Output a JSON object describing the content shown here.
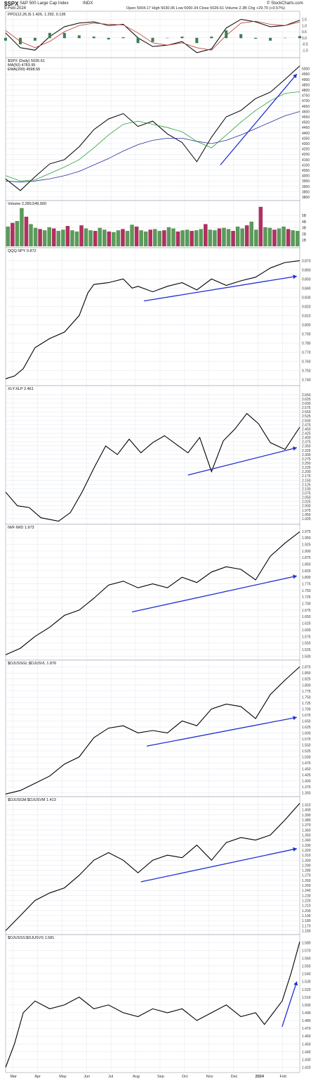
{
  "header": {
    "symbol": "$SPX",
    "name": "S&P 500 Large Cap Index",
    "exchange": "INDX",
    "date": "9-Feb-2024",
    "watermark": "© StockCharts.com",
    "quote": "Open 5004.17  High 5030.06  Low 5000.34  Close 5026.61  Volume 2.3B  Chg +29.70 (+0.57%)"
  },
  "x_axis": {
    "months": [
      "Mar",
      "Apr",
      "May",
      "Jun",
      "Jul",
      "Aug",
      "Sep",
      "Oct",
      "Nov",
      "Dec",
      "2024",
      "Feb"
    ]
  },
  "colors": {
    "price_line": "#000000",
    "ppo_signal": "#c0392b",
    "histogram": "#3a7d55",
    "ma50": "#2e9e3a",
    "ema200": "#2b2b9a",
    "volume_up": "#5a9a5a",
    "volume_down": "#b03060",
    "trend_arrow": "#1f2fd0",
    "grid": "#e2e6ee"
  },
  "chart_data": [
    {
      "id": "ppo",
      "type": "line",
      "title": "PPO(12,26,9) 1.426, 1.292, 0.136",
      "ylim": [
        -1.5,
        1.7
      ],
      "yticks": [
        "1.5",
        "1.0",
        "0.5",
        "0.0",
        "-0.5",
        "-1.0"
      ],
      "tick_values": [
        1.5,
        1.0,
        0.5,
        0.0,
        -0.5,
        -1.0
      ],
      "x": [
        0,
        0.05,
        0.1,
        0.15,
        0.2,
        0.25,
        0.3,
        0.35,
        0.4,
        0.45,
        0.5,
        0.55,
        0.6,
        0.65,
        0.7,
        0.75,
        0.8,
        0.85,
        0.9,
        0.95,
        1
      ],
      "series": [
        {
          "role": "ppo",
          "values": [
            0.4,
            -0.8,
            -1.0,
            0.1,
            0.9,
            1.2,
            1.3,
            1.0,
            1.1,
            0.0,
            -0.7,
            -0.6,
            -0.3,
            -1.2,
            -0.9,
            0.8,
            1.5,
            1.3,
            0.9,
            1.0,
            1.43
          ]
        },
        {
          "role": "signal",
          "values": [
            0.6,
            -0.3,
            -0.8,
            -0.3,
            0.5,
            1.0,
            1.2,
            1.1,
            1.05,
            0.4,
            -0.4,
            -0.6,
            -0.4,
            -0.8,
            -1.0,
            0.2,
            1.2,
            1.35,
            1.1,
            1.0,
            1.29
          ]
        }
      ]
    },
    {
      "id": "spx",
      "type": "line",
      "legend": [
        "$SPX (Daily) 5026.61",
        "MA(50) 4783.95",
        "EMA(200) 4598.56"
      ],
      "ylim": [
        3780,
        5050
      ],
      "yticks": [
        "5000",
        "4950",
        "4900",
        "4850",
        "4800",
        "4750",
        "4700",
        "4650",
        "4600",
        "4550",
        "4500",
        "4450",
        "4400",
        "4350",
        "4300",
        "4250",
        "4200",
        "4150",
        "4100",
        "4050",
        "4000",
        "3950",
        "3900",
        "3850",
        "3800"
      ],
      "tick_values": [
        5000,
        4950,
        4900,
        4850,
        4800,
        4750,
        4700,
        4650,
        4600,
        4550,
        4500,
        4450,
        4400,
        4350,
        4300,
        4250,
        4200,
        4150,
        4100,
        4050,
        4000,
        3950,
        3900,
        3850,
        3800
      ],
      "x": [
        0,
        0.05,
        0.1,
        0.15,
        0.2,
        0.25,
        0.3,
        0.35,
        0.4,
        0.45,
        0.5,
        0.55,
        0.6,
        0.65,
        0.7,
        0.75,
        0.8,
        0.85,
        0.9,
        0.95,
        1
      ],
      "series": [
        {
          "role": "price",
          "values": [
            3970,
            3860,
            3990,
            4110,
            4150,
            4270,
            4430,
            4530,
            4580,
            4460,
            4510,
            4390,
            4310,
            4130,
            4360,
            4550,
            4610,
            4720,
            4780,
            4900,
            5026
          ]
        },
        {
          "role": "ma50",
          "values": [
            4000,
            3950,
            3960,
            4020,
            4080,
            4150,
            4260,
            4380,
            4480,
            4510,
            4480,
            4450,
            4410,
            4320,
            4260,
            4380,
            4500,
            4610,
            4700,
            4770,
            4784
          ]
        },
        {
          "role": "ema200",
          "values": [
            3950,
            3940,
            3950,
            3970,
            4000,
            4040,
            4100,
            4160,
            4230,
            4290,
            4330,
            4350,
            4350,
            4320,
            4300,
            4330,
            4380,
            4440,
            4500,
            4560,
            4599
          ]
        }
      ],
      "arrow": {
        "x": [
          0.73,
          0.99
        ],
        "y": [
          4100,
          4950
        ]
      }
    },
    {
      "id": "volume",
      "type": "bar",
      "title": "Volume 2,289,549,900",
      "ylim": [
        0,
        6.5
      ],
      "yticks": [
        "5B",
        "4B",
        "3B",
        "2B",
        "1B"
      ],
      "tick_values": [
        5,
        4,
        3,
        2,
        1
      ],
      "values": [
        3.2,
        3.8,
        4.1,
        6.2,
        4.8,
        3.6,
        3.0,
        2.8,
        2.6,
        3.1,
        2.9,
        2.5,
        2.7,
        3.3,
        2.6,
        2.4,
        3.4,
        2.9,
        2.6,
        2.5,
        3.0,
        2.7,
        2.4,
        2.3,
        2.6,
        2.8,
        2.5,
        3.5,
        3.2,
        2.6,
        2.4,
        2.7,
        2.8,
        2.5,
        2.6,
        3.1,
        2.9,
        2.4,
        2.6,
        2.7,
        2.5,
        2.6,
        2.8,
        3.6,
        2.7,
        2.6,
        2.9,
        3.0,
        2.8,
        2.5,
        3.2,
        2.9,
        3.4,
        4.0,
        2.7,
        6.4,
        3.1,
        3.0,
        2.7,
        2.9,
        3.2,
        2.8,
        2.6,
        2.5
      ]
    },
    {
      "id": "qqq-spy",
      "type": "line",
      "title": "QQQ:SPY 0.872",
      "ylim": [
        0.735,
        0.878
      ],
      "yticks": [
        "0.870",
        "0.860",
        "0.850",
        "0.840",
        "0.830",
        "0.820",
        "0.810",
        "0.800",
        "0.790",
        "0.780",
        "0.770",
        "0.760",
        "0.750",
        "0.740"
      ],
      "tick_values": [
        0.87,
        0.86,
        0.85,
        0.84,
        0.83,
        0.82,
        0.81,
        0.8,
        0.79,
        0.78,
        0.77,
        0.76,
        0.75,
        0.74
      ],
      "x": [
        0,
        0.03,
        0.06,
        0.1,
        0.15,
        0.2,
        0.25,
        0.28,
        0.3,
        0.35,
        0.4,
        0.43,
        0.45,
        0.5,
        0.55,
        0.6,
        0.65,
        0.7,
        0.75,
        0.8,
        0.85,
        0.9,
        0.95,
        1
      ],
      "values": [
        0.741,
        0.744,
        0.752,
        0.775,
        0.785,
        0.792,
        0.81,
        0.835,
        0.844,
        0.846,
        0.85,
        0.84,
        0.842,
        0.836,
        0.842,
        0.846,
        0.838,
        0.85,
        0.843,
        0.848,
        0.852,
        0.862,
        0.868,
        0.87
      ],
      "arrow": {
        "x": [
          0.47,
          0.99
        ],
        "y": [
          0.826,
          0.853
        ]
      }
    },
    {
      "id": "xly-xlp",
      "type": "line",
      "title": "XLY:XLP 2.461",
      "ylim": [
        1.9,
        2.67
      ],
      "yticks": [
        "2.650",
        "2.625",
        "2.600",
        "2.575",
        "2.550",
        "2.525",
        "2.500",
        "2.475",
        "2.450",
        "2.425",
        "2.400",
        "2.375",
        "2.350",
        "2.325",
        "2.300",
        "2.275",
        "2.250",
        "2.225",
        "2.200",
        "2.175",
        "2.150",
        "2.125",
        "2.100",
        "2.075",
        "2.050",
        "2.025",
        "2.000",
        "1.975",
        "1.950",
        "1.925"
      ],
      "tick_values": [
        2.65,
        2.625,
        2.6,
        2.575,
        2.55,
        2.525,
        2.5,
        2.475,
        2.45,
        2.425,
        2.4,
        2.375,
        2.35,
        2.325,
        2.3,
        2.275,
        2.25,
        2.225,
        2.2,
        2.175,
        2.15,
        2.125,
        2.1,
        2.075,
        2.05,
        2.025,
        2.0,
        1.975,
        1.95,
        1.925
      ],
      "x": [
        0,
        0.04,
        0.08,
        0.12,
        0.18,
        0.22,
        0.26,
        0.3,
        0.34,
        0.38,
        0.42,
        0.46,
        0.5,
        0.54,
        0.58,
        0.62,
        0.66,
        0.7,
        0.74,
        0.78,
        0.82,
        0.86,
        0.9,
        0.95,
        1
      ],
      "values": [
        2.08,
        2.0,
        1.99,
        1.93,
        1.91,
        1.96,
        2.08,
        2.22,
        2.35,
        2.3,
        2.39,
        2.31,
        2.37,
        2.41,
        2.36,
        2.31,
        2.4,
        2.2,
        2.38,
        2.45,
        2.54,
        2.48,
        2.37,
        2.33,
        2.46
      ],
      "arrow": {
        "x": [
          0.62,
          0.99
        ],
        "y": [
          2.18,
          2.34
        ]
      }
    },
    {
      "id": "iwf-iwd",
      "type": "line",
      "title": "IWF:IWD 1.973",
      "ylim": [
        1.49,
        1.98
      ],
      "yticks": [
        "1.975",
        "1.950",
        "1.925",
        "1.900",
        "1.875",
        "1.850",
        "1.825",
        "1.800",
        "1.775",
        "1.750",
        "1.725",
        "1.700",
        "1.675",
        "1.650",
        "1.625",
        "1.600",
        "1.575",
        "1.550",
        "1.525",
        "1.500"
      ],
      "tick_values": [
        1.975,
        1.95,
        1.925,
        1.9,
        1.875,
        1.85,
        1.825,
        1.8,
        1.775,
        1.75,
        1.725,
        1.7,
        1.675,
        1.65,
        1.625,
        1.6,
        1.575,
        1.55,
        1.525,
        1.5
      ],
      "x": [
        0,
        0.05,
        0.1,
        0.15,
        0.2,
        0.25,
        0.3,
        0.35,
        0.4,
        0.45,
        0.5,
        0.55,
        0.6,
        0.65,
        0.7,
        0.75,
        0.8,
        0.85,
        0.9,
        0.95,
        1
      ],
      "values": [
        1.505,
        1.53,
        1.575,
        1.61,
        1.655,
        1.675,
        1.72,
        1.77,
        1.785,
        1.76,
        1.775,
        1.76,
        1.8,
        1.78,
        1.82,
        1.84,
        1.83,
        1.79,
        1.88,
        1.93,
        1.973
      ],
      "arrow": {
        "x": [
          0.43,
          0.99
        ],
        "y": [
          1.668,
          1.805
        ]
      }
    },
    {
      "id": "djussg-djussvl",
      "type": "line",
      "title": "$DJUSSGL:$DJUSVL 1.876",
      "ylim": [
        1.34,
        1.88
      ],
      "yticks": [
        "1.875",
        "1.850",
        "1.825",
        "1.800",
        "1.775",
        "1.750",
        "1.725",
        "1.700",
        "1.675",
        "1.650",
        "1.625",
        "1.600",
        "1.575",
        "1.550",
        "1.525",
        "1.500",
        "1.475",
        "1.450",
        "1.425",
        "1.400",
        "1.375",
        "1.350"
      ],
      "tick_values": [
        1.875,
        1.85,
        1.825,
        1.8,
        1.775,
        1.75,
        1.725,
        1.7,
        1.675,
        1.65,
        1.625,
        1.6,
        1.575,
        1.55,
        1.525,
        1.5,
        1.475,
        1.45,
        1.425,
        1.4,
        1.375,
        1.35
      ],
      "x": [
        0,
        0.05,
        0.1,
        0.15,
        0.2,
        0.25,
        0.3,
        0.35,
        0.4,
        0.45,
        0.5,
        0.55,
        0.6,
        0.65,
        0.7,
        0.75,
        0.8,
        0.85,
        0.9,
        0.95,
        1
      ],
      "values": [
        1.345,
        1.36,
        1.39,
        1.42,
        1.47,
        1.5,
        1.58,
        1.62,
        1.63,
        1.6,
        1.61,
        1.6,
        1.65,
        1.63,
        1.7,
        1.72,
        1.71,
        1.66,
        1.76,
        1.82,
        1.876
      ],
      "arrow": {
        "x": [
          0.48,
          0.99
        ],
        "y": [
          1.545,
          1.665
        ]
      }
    },
    {
      "id": "djusgm-djusvm",
      "type": "line",
      "title": "$DJUSGM:$DJUSVM 1.413",
      "ylim": [
        1.155,
        1.415
      ],
      "yticks": [
        "1.410",
        "1.400",
        "1.390",
        "1.380",
        "1.370",
        "1.360",
        "1.350",
        "1.340",
        "1.330",
        "1.320",
        "1.310",
        "1.300",
        "1.290",
        "1.280",
        "1.270",
        "1.260",
        "1.250",
        "1.240",
        "1.230",
        "1.220",
        "1.210",
        "1.200",
        "1.190",
        "1.180",
        "1.170",
        "1.160"
      ],
      "tick_values": [
        1.41,
        1.4,
        1.39,
        1.38,
        1.37,
        1.36,
        1.35,
        1.34,
        1.33,
        1.32,
        1.31,
        1.3,
        1.29,
        1.28,
        1.27,
        1.26,
        1.25,
        1.24,
        1.23,
        1.22,
        1.21,
        1.2,
        1.19,
        1.18,
        1.17,
        1.16
      ],
      "x": [
        0,
        0.05,
        0.1,
        0.15,
        0.2,
        0.25,
        0.3,
        0.35,
        0.4,
        0.45,
        0.5,
        0.55,
        0.6,
        0.65,
        0.7,
        0.75,
        0.8,
        0.85,
        0.9,
        0.95,
        1
      ],
      "values": [
        1.16,
        1.19,
        1.22,
        1.235,
        1.245,
        1.27,
        1.3,
        1.315,
        1.3,
        1.275,
        1.3,
        1.31,
        1.305,
        1.33,
        1.3,
        1.335,
        1.345,
        1.34,
        1.35,
        1.38,
        1.413
      ],
      "arrow": {
        "x": [
          0.46,
          0.99
        ],
        "y": [
          1.257,
          1.323
        ]
      }
    },
    {
      "id": "djusss-djussvs",
      "type": "line",
      "title": "$DJUSSS:$DJUSVS 1.581",
      "ylim": [
        1.415,
        1.583
      ],
      "yticks": [
        "1.580",
        "1.570",
        "1.560",
        "1.550",
        "1.540",
        "1.530",
        "1.520",
        "1.510",
        "1.500",
        "1.490",
        "1.480",
        "1.470",
        "1.460",
        "1.450",
        "1.440",
        "1.430",
        "1.420"
      ],
      "tick_values": [
        1.58,
        1.57,
        1.56,
        1.55,
        1.54,
        1.53,
        1.52,
        1.51,
        1.5,
        1.49,
        1.48,
        1.47,
        1.46,
        1.45,
        1.44,
        1.43,
        1.42
      ],
      "x": [
        0,
        0.03,
        0.06,
        0.1,
        0.15,
        0.2,
        0.25,
        0.3,
        0.35,
        0.4,
        0.45,
        0.5,
        0.55,
        0.6,
        0.65,
        0.7,
        0.75,
        0.8,
        0.85,
        0.88,
        0.91,
        0.94,
        0.97,
        1
      ],
      "values": [
        1.42,
        1.45,
        1.49,
        1.505,
        1.495,
        1.5,
        1.51,
        1.495,
        1.5,
        1.49,
        1.485,
        1.495,
        1.49,
        1.495,
        1.48,
        1.49,
        1.5,
        1.485,
        1.49,
        1.475,
        1.49,
        1.505,
        1.54,
        1.581
      ],
      "arrow": {
        "x": [
          0.94,
          0.99
        ],
        "y": [
          1.472,
          1.53
        ]
      }
    }
  ]
}
